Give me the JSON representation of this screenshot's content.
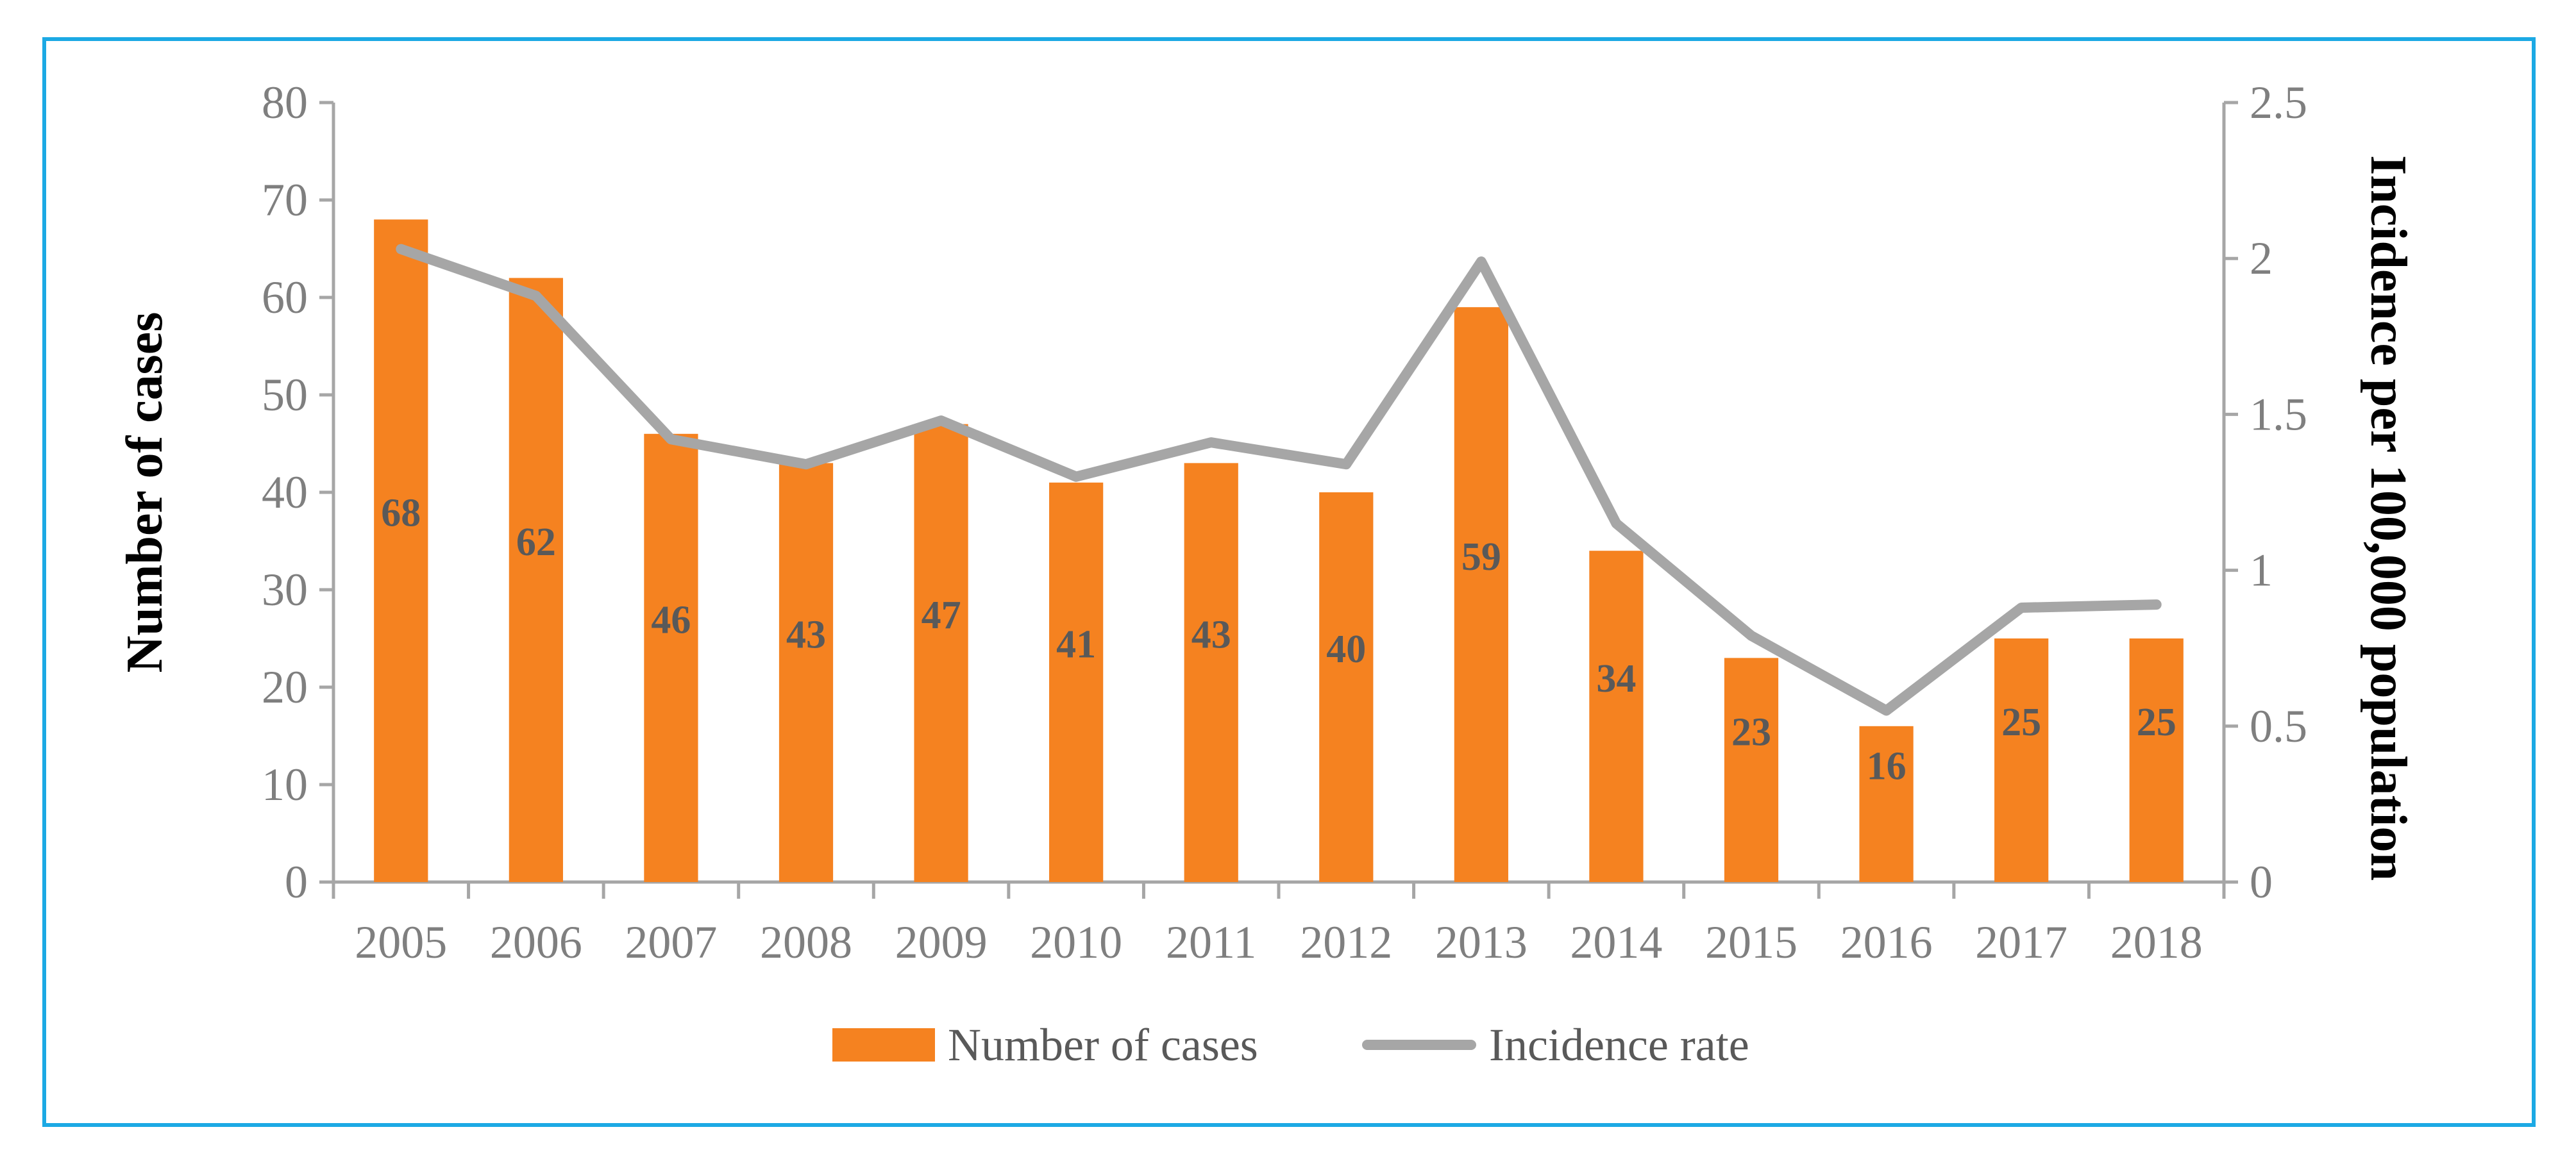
{
  "chart_data": {
    "type": "bar+line",
    "categories": [
      "2005",
      "2006",
      "2007",
      "2008",
      "2009",
      "2010",
      "2011",
      "2012",
      "2013",
      "2014",
      "2015",
      "2016",
      "2017",
      "2018"
    ],
    "series": [
      {
        "name": "Number of cases",
        "type": "bar",
        "axis": "left",
        "color": "#f58220",
        "values": [
          68,
          62,
          46,
          43,
          47,
          41,
          43,
          40,
          59,
          34,
          23,
          16,
          25,
          25
        ],
        "labels": [
          "68",
          "62",
          "46",
          "43",
          "47",
          "41",
          "43",
          "40",
          "59",
          "34",
          "23",
          "16",
          "25",
          "25"
        ]
      },
      {
        "name": "Incidence rate",
        "type": "line",
        "axis": "right",
        "color": "#a6a6a6",
        "values": [
          2.03,
          1.88,
          1.42,
          1.34,
          1.48,
          1.3,
          1.41,
          1.34,
          1.99,
          1.15,
          0.79,
          0.55,
          0.88,
          0.89
        ]
      }
    ],
    "y_left": {
      "label": "Number of cases",
      "range": [
        0,
        80
      ],
      "ticks": [
        "0",
        "10",
        "20",
        "30",
        "40",
        "50",
        "60",
        "70",
        "80"
      ]
    },
    "y_right": {
      "label": "Incidence per 100,000 population",
      "range": [
        0,
        2.5
      ],
      "ticks": [
        "0",
        "0.5",
        "1",
        "1.5",
        "2",
        "2.5"
      ]
    },
    "legend": {
      "position": "bottom",
      "items": [
        "Number of cases",
        "Incidence rate"
      ]
    },
    "grid": false,
    "axis_color": "#a6a6a6",
    "frame_color": "#1ca9e4"
  }
}
